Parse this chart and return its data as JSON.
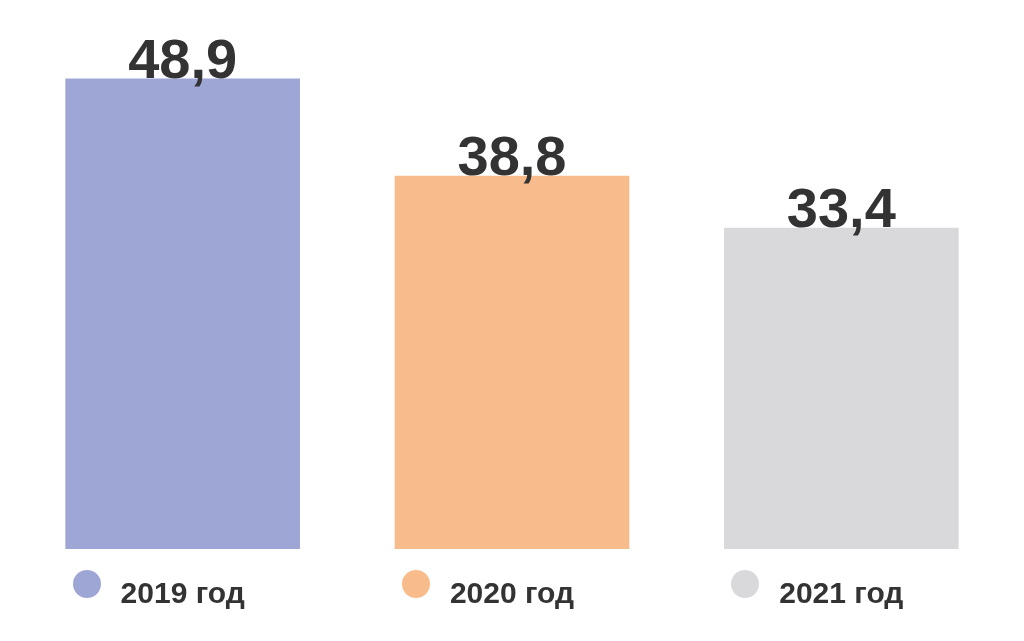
{
  "chart_data": {
    "type": "bar",
    "categories": [
      "2019 год",
      "2020 год",
      "2021 год"
    ],
    "values": [
      48.9,
      38.8,
      33.4
    ],
    "colors": [
      "#9ea6d6",
      "#f8bc8c",
      "#d9d9db"
    ],
    "value_labels": [
      "48,9",
      "38,8",
      "33,4"
    ],
    "grid": false
  }
}
